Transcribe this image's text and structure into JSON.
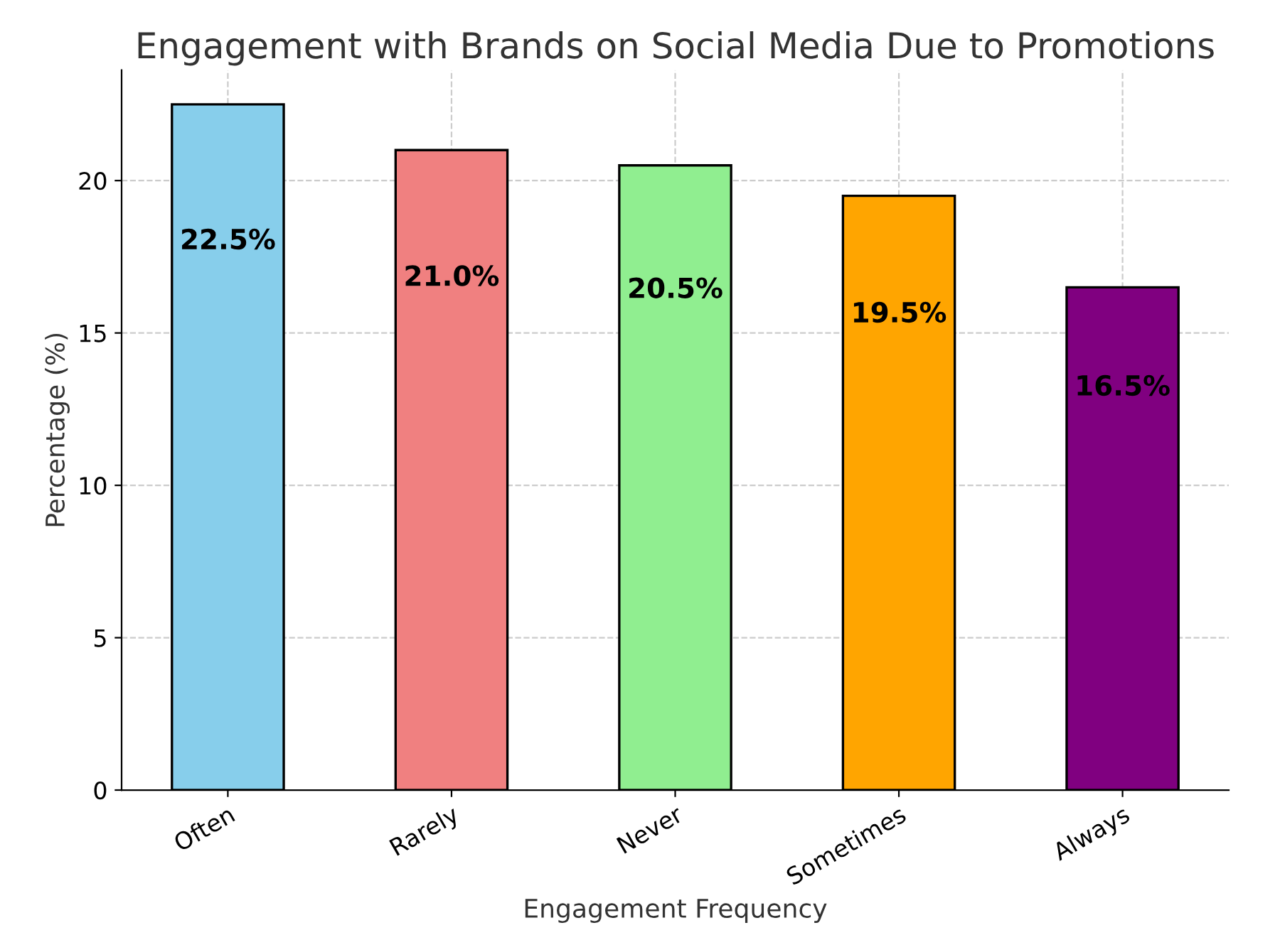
{
  "chart_data": {
    "type": "bar",
    "title": "Engagement with Brands on Social Media Due to Promotions",
    "xlabel": "Engagement Frequency",
    "ylabel": "Percentage (%)",
    "categories": [
      "Often",
      "Rarely",
      "Never",
      "Sometimes",
      "Always"
    ],
    "values": [
      22.5,
      21.0,
      20.5,
      19.5,
      16.5
    ],
    "colors": [
      "#87ceeb",
      "#f08080",
      "#90ee90",
      "#ffa500",
      "#800080"
    ],
    "value_labels": [
      "22.5%",
      "21.0%",
      "20.5%",
      "19.5%",
      "16.5%"
    ],
    "ylim": [
      0,
      23.625
    ],
    "yticks": [
      0,
      5,
      10,
      15,
      20
    ],
    "grid": true
  }
}
